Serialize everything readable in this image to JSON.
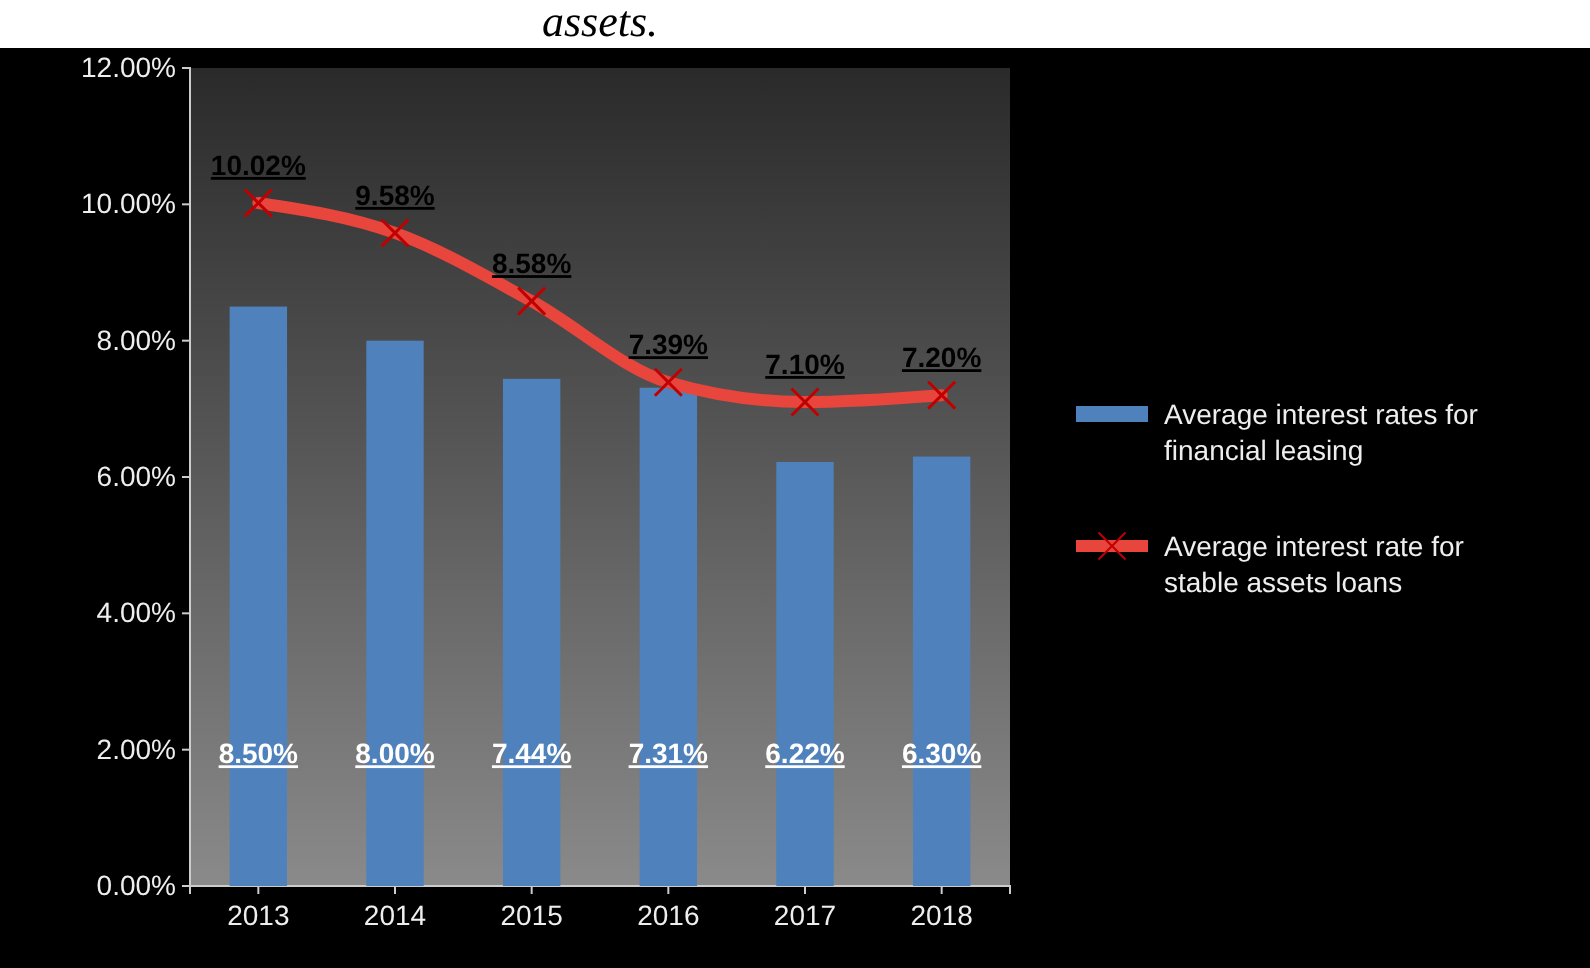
{
  "chart_data": {
    "type": "bar",
    "title": "assets.",
    "categories": [
      "2013",
      "2014",
      "2015",
      "2016",
      "2017",
      "2018"
    ],
    "series": [
      {
        "name": "Average  interest rates for financial leasing",
        "color": "#4f81bd",
        "values": [
          8.5,
          8.0,
          7.44,
          7.31,
          6.22,
          6.3
        ],
        "value_labels": [
          "8.50%",
          "8.00%",
          "7.44%",
          "7.31%",
          "6.22%",
          "6.30%"
        ]
      },
      {
        "name": "Average interest rate for stable assets loans",
        "type": "line",
        "color": "#e8453c",
        "values": [
          10.02,
          9.58,
          8.58,
          7.39,
          7.1,
          7.2
        ],
        "value_labels": [
          "10.02%",
          "9.58%",
          "8.58%",
          "7.39%",
          "7.10%",
          "7.20%"
        ]
      }
    ],
    "ylim": [
      0,
      12
    ],
    "yticks": [
      {
        "value": 0,
        "label": "0.00%"
      },
      {
        "value": 2,
        "label": "2.00%"
      },
      {
        "value": 4,
        "label": "4.00%"
      },
      {
        "value": 6,
        "label": "6.00%"
      },
      {
        "value": 8,
        "label": "8.00%"
      },
      {
        "value": 10,
        "label": "10.00%"
      },
      {
        "value": 12,
        "label": "12.00%"
      }
    ],
    "legend": "right",
    "marker": "cross",
    "line_style": "solid",
    "grid": false
  }
}
